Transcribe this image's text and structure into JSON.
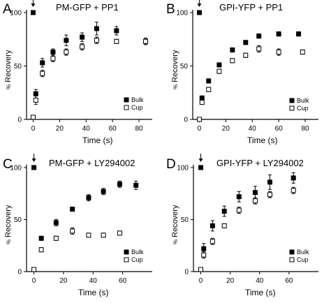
{
  "chart_data": [
    {
      "type": "scatter",
      "panel_label": "A",
      "title": "PM-GFP + PP1",
      "xlabel": "Time (s)",
      "ylabel_unit": "%",
      "ylabel_word": "Recovery",
      "xlim": [
        -5,
        90
      ],
      "ylim": [
        0,
        100
      ],
      "xticks": [
        "0",
        "20",
        "40",
        "60",
        "80"
      ],
      "yticks": [
        "0",
        "50",
        "100"
      ],
      "arrow_at_x": 0,
      "legend_position": "bottom-right",
      "series": [
        {
          "name": "Bulk",
          "marker": "filled-square",
          "x": [
            0,
            2,
            7,
            15,
            25,
            37,
            48,
            63,
            85
          ],
          "y": [
            100,
            24,
            53,
            63,
            74,
            77,
            85,
            83,
            73
          ],
          "err": [
            0,
            4,
            4,
            3,
            5,
            4,
            6,
            4,
            3
          ]
        },
        {
          "name": "Cup",
          "marker": "open-square",
          "x": [
            0,
            2,
            7,
            15,
            25,
            37,
            48,
            63,
            85
          ],
          "y": [
            2,
            18,
            43,
            57,
            63,
            68,
            74,
            73,
            73
          ],
          "err": [
            0,
            4,
            3,
            3,
            3,
            3,
            3,
            2,
            3
          ]
        }
      ]
    },
    {
      "type": "scatter",
      "panel_label": "B",
      "title": "GPI-YFP + PP1",
      "xlabel": "Time (s)",
      "ylabel_unit": "%",
      "ylabel_word": "Recovery",
      "xlim": [
        -5,
        90
      ],
      "ylim": [
        0,
        100
      ],
      "xticks": [
        "0",
        "20",
        "40",
        "60",
        "80"
      ],
      "yticks": [
        "0",
        "50",
        "100"
      ],
      "arrow_at_x": 0,
      "legend_position": "bottom-right",
      "series": [
        {
          "name": "Bulk",
          "marker": "filled-square",
          "x": [
            0,
            2,
            7,
            15,
            25,
            35,
            45,
            60,
            75
          ],
          "y": [
            100,
            20,
            36,
            51,
            65,
            72,
            78,
            80,
            80
          ],
          "err": [
            0,
            2,
            2,
            2,
            2,
            2,
            2,
            2,
            2
          ]
        },
        {
          "name": "Cup",
          "marker": "open-square",
          "x": [
            0,
            2,
            7,
            15,
            25,
            35,
            45,
            60,
            78
          ],
          "y": [
            0,
            16,
            28,
            45,
            55,
            60,
            66,
            63,
            63
          ],
          "err": [
            0,
            2,
            2,
            2,
            2,
            2,
            3,
            3,
            2
          ]
        }
      ]
    },
    {
      "type": "scatter",
      "panel_label": "C",
      "title": "PM-GFP + LY294002",
      "xlabel": "Time (s)",
      "ylabel_unit": "%",
      "ylabel_word": "Recovery",
      "xlim": [
        -5,
        80
      ],
      "ylim": [
        0,
        100
      ],
      "xticks": [
        "0",
        "20",
        "40",
        "60"
      ],
      "yticks": [
        "0",
        "50",
        "100"
      ],
      "arrow_at_x": 0,
      "legend_position": "bottom-right",
      "series": [
        {
          "name": "Bulk",
          "marker": "filled-square",
          "x": [
            0,
            5,
            15,
            26,
            37,
            47,
            58,
            69
          ],
          "y": [
            100,
            32,
            47,
            60,
            71,
            77,
            84,
            83
          ],
          "err": [
            0,
            2,
            3,
            2,
            3,
            3,
            3,
            4
          ]
        },
        {
          "name": "Cup",
          "marker": "open-square",
          "x": [
            0,
            5,
            15,
            26,
            37,
            47,
            58
          ],
          "y": [
            2,
            21,
            32,
            39,
            35,
            35,
            37
          ],
          "err": [
            0,
            2,
            2,
            3,
            2,
            2,
            2
          ]
        }
      ]
    },
    {
      "type": "scatter",
      "panel_label": "D",
      "title": "GPI-YFP + LY294002",
      "xlabel": "Time (s)",
      "ylabel_unit": "%",
      "ylabel_word": "Recovery",
      "xlim": [
        -5,
        80
      ],
      "ylim": [
        0,
        100
      ],
      "xticks": [
        "0",
        "20",
        "40",
        "60"
      ],
      "yticks": [
        "0",
        "50",
        "100"
      ],
      "arrow_at_x": 0,
      "legend_position": "bottom-right",
      "series": [
        {
          "name": "Bulk",
          "marker": "filled-square",
          "x": [
            0,
            2,
            8,
            16,
            26,
            37,
            47,
            63
          ],
          "y": [
            100,
            22,
            44,
            58,
            72,
            76,
            86,
            90
          ],
          "err": [
            0,
            5,
            5,
            5,
            5,
            6,
            7,
            5
          ]
        },
        {
          "name": "Cup",
          "marker": "open-square",
          "x": [
            0,
            2,
            8,
            16,
            26,
            37,
            47,
            63
          ],
          "y": [
            2,
            16,
            29,
            44,
            59,
            68,
            74,
            78
          ],
          "err": [
            0,
            3,
            3,
            2,
            3,
            3,
            3,
            3
          ]
        }
      ]
    }
  ]
}
